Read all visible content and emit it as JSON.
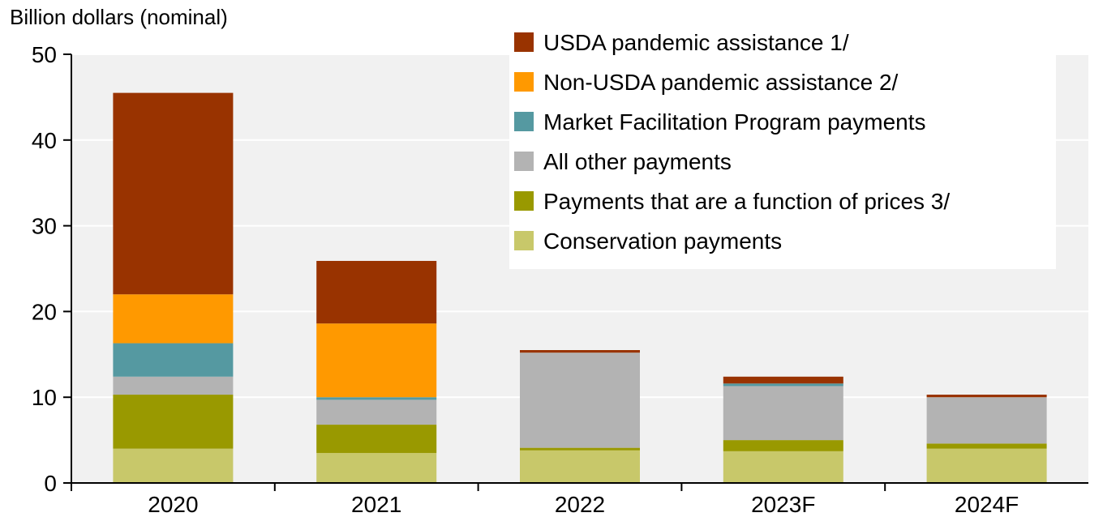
{
  "chart_data": {
    "type": "bar",
    "stacked": true,
    "ylabel": "Billion dollars (nominal)",
    "xlabel": "",
    "ylim": [
      0,
      50
    ],
    "yticks": [
      0,
      10,
      20,
      30,
      40,
      50
    ],
    "grid": true,
    "legend_position": "top-right",
    "categories": [
      "2020",
      "2021",
      "2022",
      "2023F",
      "2024F"
    ],
    "series": [
      {
        "name": "Conservation payments",
        "color": "#c8c86a",
        "values": [
          4.0,
          3.5,
          3.8,
          3.7,
          4.0
        ]
      },
      {
        "name": "Payments that are a function of prices 3/",
        "color": "#999900",
        "values": [
          6.3,
          3.3,
          0.3,
          1.3,
          0.6
        ]
      },
      {
        "name": "All other payments",
        "color": "#b3b3b3",
        "values": [
          2.1,
          2.9,
          11.1,
          6.3,
          5.4
        ]
      },
      {
        "name": "Market Facilitation Program payments",
        "color": "#5599a1",
        "values": [
          3.9,
          0.3,
          0.0,
          0.3,
          0.0
        ]
      },
      {
        "name": "Non-USDA pandemic assistance 2/",
        "color": "#ff9900",
        "values": [
          5.7,
          8.6,
          0.0,
          0.0,
          0.0
        ]
      },
      {
        "name": "USDA pandemic assistance 1/",
        "color": "#993300",
        "values": [
          23.5,
          7.3,
          0.3,
          0.8,
          0.3
        ]
      }
    ],
    "legend_order": [
      "USDA pandemic assistance 1/",
      "Non-USDA pandemic assistance 2/",
      "Market Facilitation Program payments",
      "All other payments",
      "Payments that are a function of prices 3/",
      "Conservation payments"
    ]
  }
}
